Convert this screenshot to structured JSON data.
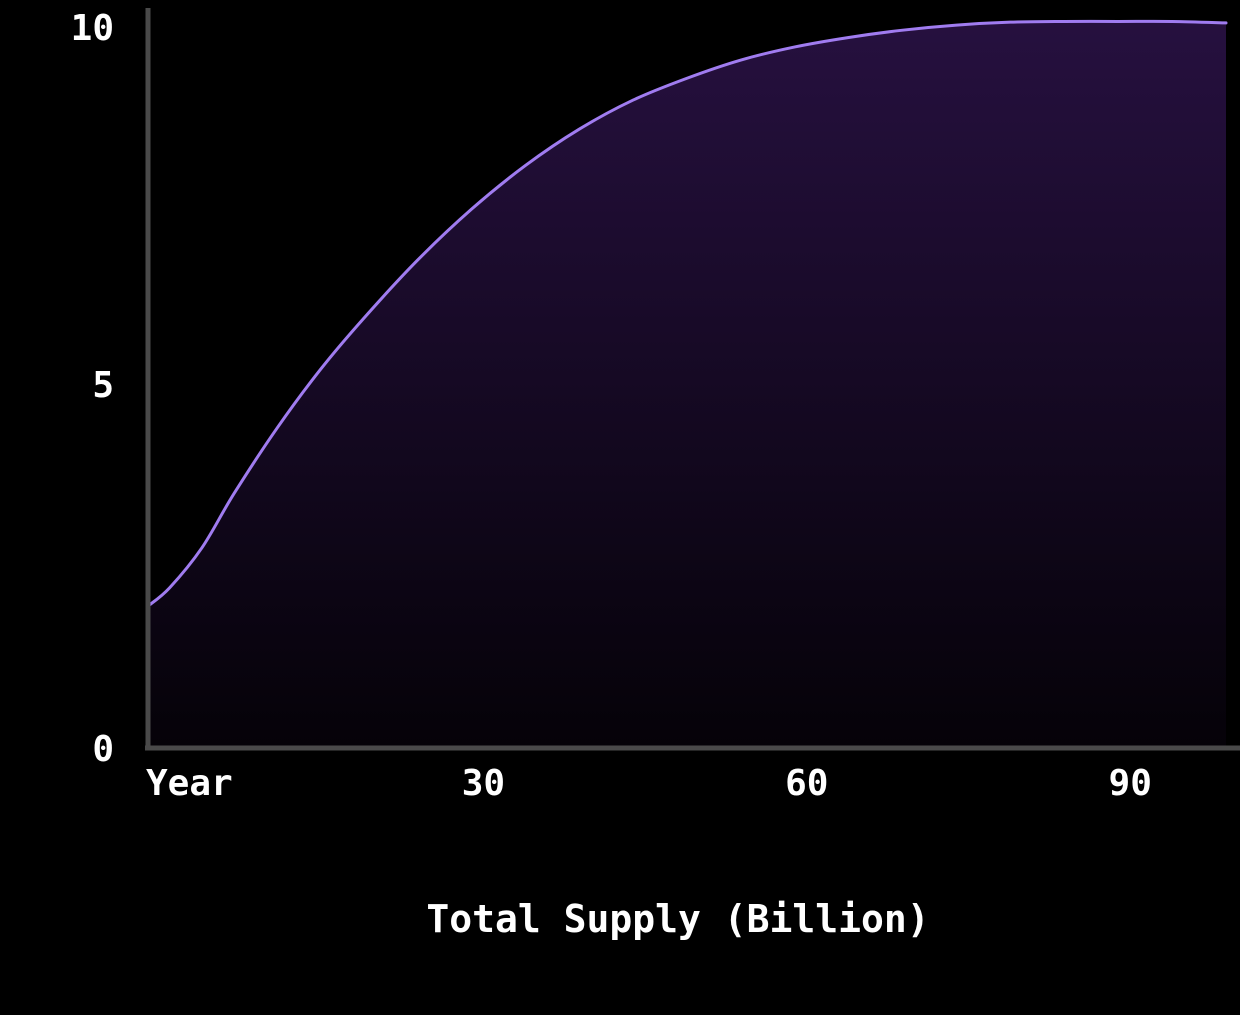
{
  "chart_data": {
    "type": "area",
    "title": "",
    "xlabel": "Total Supply (Billion)",
    "ylabel": "",
    "xlim": [
      0,
      100
    ],
    "ylim": [
      0,
      10
    ],
    "x_ticks": [
      {
        "value": 0,
        "label": "Year"
      },
      {
        "value": 30,
        "label": "30"
      },
      {
        "value": 60,
        "label": "60"
      },
      {
        "value": 90,
        "label": "90"
      }
    ],
    "y_ticks": [
      {
        "value": 0,
        "label": "0"
      },
      {
        "value": 5,
        "label": "5"
      },
      {
        "value": 10,
        "label": "10"
      }
    ],
    "grid": false,
    "legend": "none",
    "series": [
      {
        "x": [
          0,
          2,
          5,
          8,
          12,
          16,
          20,
          25,
          30,
          35,
          40,
          45,
          50,
          55,
          60,
          65,
          70,
          75,
          80,
          85,
          90,
          95,
          100
        ],
        "values": [
          1.95,
          2.2,
          2.75,
          3.5,
          4.4,
          5.2,
          5.9,
          6.7,
          7.4,
          8.0,
          8.5,
          8.9,
          9.2,
          9.45,
          9.63,
          9.76,
          9.86,
          9.93,
          9.97,
          9.98,
          9.98,
          9.98,
          9.96
        ]
      }
    ],
    "colors": {
      "line": "#a07cf0",
      "fill_top": "#26103f",
      "fill_bottom": "#050208",
      "axis": "#4a4a4a",
      "text": "#ffffff",
      "background": "#000000"
    }
  }
}
